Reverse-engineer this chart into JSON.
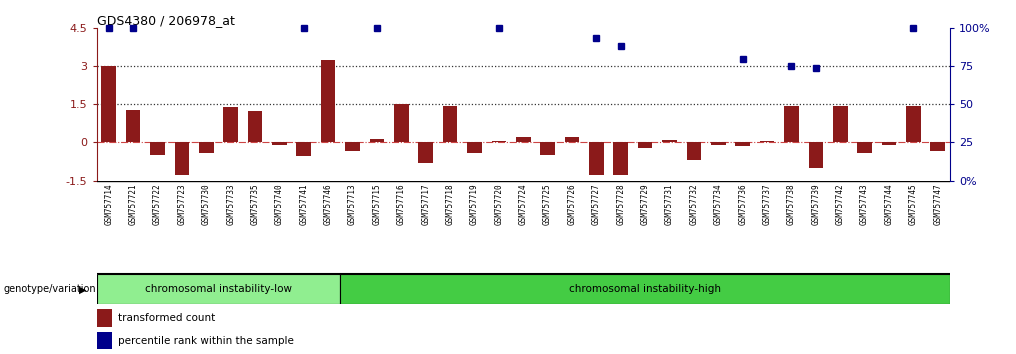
{
  "title": "GDS4380 / 206978_at",
  "samples": [
    "GSM757714",
    "GSM757721",
    "GSM757722",
    "GSM757723",
    "GSM757730",
    "GSM757733",
    "GSM757735",
    "GSM757740",
    "GSM757741",
    "GSM757746",
    "GSM757713",
    "GSM757715",
    "GSM757716",
    "GSM757717",
    "GSM757718",
    "GSM757719",
    "GSM757720",
    "GSM757724",
    "GSM757725",
    "GSM757726",
    "GSM757727",
    "GSM757728",
    "GSM757729",
    "GSM757731",
    "GSM757732",
    "GSM757734",
    "GSM757736",
    "GSM757737",
    "GSM757738",
    "GSM757739",
    "GSM757742",
    "GSM757743",
    "GSM757744",
    "GSM757745",
    "GSM757747"
  ],
  "bar_values": [
    3.0,
    1.3,
    -0.5,
    -1.3,
    -0.4,
    1.4,
    1.25,
    -0.1,
    -0.55,
    3.25,
    -0.35,
    0.15,
    1.5,
    -0.8,
    1.45,
    -0.4,
    0.05,
    0.2,
    -0.5,
    0.2,
    -1.3,
    -1.3,
    -0.2,
    0.1,
    -0.7,
    -0.1,
    -0.15,
    0.07,
    1.45,
    -1.0,
    1.45,
    -0.4,
    -0.1,
    1.45,
    -0.35
  ],
  "dot_values": [
    4.5,
    4.5,
    null,
    null,
    null,
    null,
    null,
    null,
    4.5,
    null,
    null,
    4.5,
    null,
    null,
    null,
    null,
    4.5,
    null,
    null,
    null,
    4.1,
    3.8,
    null,
    null,
    null,
    null,
    3.3,
    null,
    3.0,
    2.95,
    null,
    null,
    null,
    4.5,
    null
  ],
  "low_group_count": 10,
  "low_group_label": "chromosomal instability-low",
  "high_group_label": "chromosomal instability-high",
  "genotype_label": "genotype/variation",
  "legend_bar": "transformed count",
  "legend_dot": "percentile rank within the sample",
  "ylim": [
    -1.5,
    4.5
  ],
  "right_ylim": [
    0,
    100
  ],
  "bar_color": "#8B1A1A",
  "dot_color": "#00008B",
  "zero_line_color": "#CC4444",
  "dotted_line_color": "#333333",
  "low_group_color": "#90EE90",
  "high_group_color": "#44CC44",
  "xtick_bg_color": "#C0C0C0",
  "hline_dotted_1": 1.5,
  "hline_dotted_2": 3.0,
  "bar_width": 0.6
}
